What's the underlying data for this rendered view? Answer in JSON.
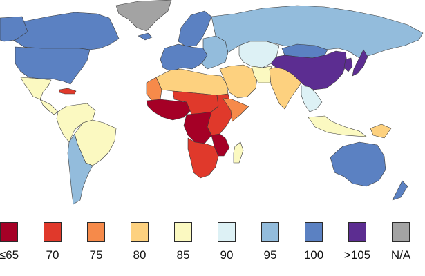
{
  "legend": {
    "items": [
      {
        "label": "≤65",
        "color": "#a50026"
      },
      {
        "label": "70",
        "color": "#e0392b"
      },
      {
        "label": "75",
        "color": "#f68a4a"
      },
      {
        "label": "80",
        "color": "#fdd17f"
      },
      {
        "label": "85",
        "color": "#fbf9c1"
      },
      {
        "label": "90",
        "color": "#ddf1f5"
      },
      {
        "label": "95",
        "color": "#93bcdc"
      },
      {
        "label": "100",
        "color": "#5b81c2"
      },
      {
        "label": ">105",
        "color": "#5c2d91"
      },
      {
        "label": "N/A",
        "color": "#a3a3a3"
      }
    ]
  },
  "regions": [
    {
      "name": "greenland",
      "class": "N/A"
    },
    {
      "name": "canada",
      "class": "100"
    },
    {
      "name": "alaska",
      "class": "100"
    },
    {
      "name": "usa",
      "class": "100"
    },
    {
      "name": "mexico",
      "class": "85"
    },
    {
      "name": "central-america",
      "class": "85"
    },
    {
      "name": "caribbean",
      "class": "70"
    },
    {
      "name": "northern-south-america",
      "class": "85"
    },
    {
      "name": "brazil",
      "class": "85"
    },
    {
      "name": "southern-cone",
      "class": "95"
    },
    {
      "name": "iceland",
      "class": "100"
    },
    {
      "name": "scandinavia",
      "class": "100"
    },
    {
      "name": "western-europe",
      "class": "100"
    },
    {
      "name": "eastern-europe",
      "class": "95"
    },
    {
      "name": "russia",
      "class": "95"
    },
    {
      "name": "central-asia",
      "class": "90"
    },
    {
      "name": "north-africa",
      "class": "80"
    },
    {
      "name": "mauritania",
      "class": "75"
    },
    {
      "name": "middle-east",
      "class": "80"
    },
    {
      "name": "iran",
      "class": "85"
    },
    {
      "name": "west-africa",
      "class": "≤65"
    },
    {
      "name": "central-africa",
      "class": "70"
    },
    {
      "name": "east-africa",
      "class": "70"
    },
    {
      "name": "horn-of-africa",
      "class": "75"
    },
    {
      "name": "congo",
      "class": "≤65"
    },
    {
      "name": "southern-africa",
      "class": "70"
    },
    {
      "name": "mozambique",
      "class": "≤65"
    },
    {
      "name": "madagascar",
      "class": "85"
    },
    {
      "name": "south-asia",
      "class": "80"
    },
    {
      "name": "mongolia",
      "class": "100"
    },
    {
      "name": "china",
      "class": ">105"
    },
    {
      "name": "korea",
      "class": ">105"
    },
    {
      "name": "japan",
      "class": ">105"
    },
    {
      "name": "southeast-asia",
      "class": "90"
    },
    {
      "name": "indonesia",
      "class": "85"
    },
    {
      "name": "papua-new-guinea",
      "class": "80"
    },
    {
      "name": "australia",
      "class": "100"
    },
    {
      "name": "new-zealand",
      "class": "100"
    }
  ]
}
